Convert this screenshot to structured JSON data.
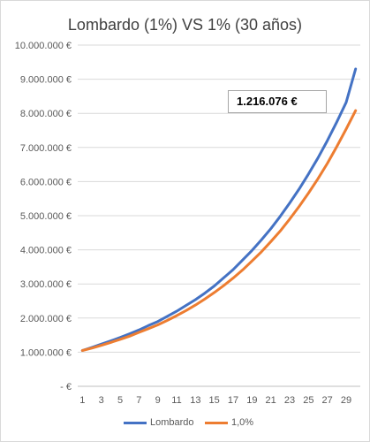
{
  "chart_data": {
    "type": "line",
    "title": "Lombardo (1%) VS 1% (30 años)",
    "xlabel": "",
    "ylabel": "",
    "x": [
      1,
      2,
      3,
      4,
      5,
      6,
      7,
      8,
      9,
      10,
      11,
      12,
      13,
      14,
      15,
      16,
      17,
      18,
      19,
      20,
      21,
      22,
      23,
      24,
      25,
      26,
      27,
      28,
      29,
      30
    ],
    "x_tick_labels": [
      "1",
      "3",
      "5",
      "7",
      "9",
      "11",
      "13",
      "15",
      "17",
      "19",
      "21",
      "23",
      "25",
      "27",
      "29"
    ],
    "y_tick_labels": [
      "-  €",
      "1.000.000 €",
      "2.000.000 €",
      "3.000.000 €",
      "4.000.000 €",
      "5.000.000 €",
      "6.000.000 €",
      "7.000.000 €",
      "8.000.000 €",
      "9.000.000 €",
      "10.000.000 €"
    ],
    "ylim": [
      0,
      10000000
    ],
    "grid": true,
    "legend_position": "bottom",
    "series": [
      {
        "name": "Lombardo",
        "color": "#4472c4",
        "values": [
          1050000,
          1140000,
          1235000,
          1330000,
          1430000,
          1540000,
          1650000,
          1780000,
          1900000,
          2050000,
          2200000,
          2370000,
          2540000,
          2730000,
          2940000,
          3180000,
          3420000,
          3700000,
          3980000,
          4290000,
          4620000,
          4980000,
          5370000,
          5780000,
          6220000,
          6690000,
          7200000,
          7740000,
          8320000,
          9300000
        ]
      },
      {
        "name": "1,0%",
        "color": "#ed7d31",
        "values": [
          1050000,
          1120000,
          1200000,
          1285000,
          1375000,
          1470000,
          1580000,
          1690000,
          1800000,
          1930000,
          2070000,
          2220000,
          2380000,
          2560000,
          2750000,
          2950000,
          3170000,
          3410000,
          3670000,
          3940000,
          4240000,
          4550000,
          4900000,
          5270000,
          5660000,
          6080000,
          6530000,
          7020000,
          7540000,
          8080000
        ]
      }
    ],
    "annotation": "1.216.076 €"
  }
}
